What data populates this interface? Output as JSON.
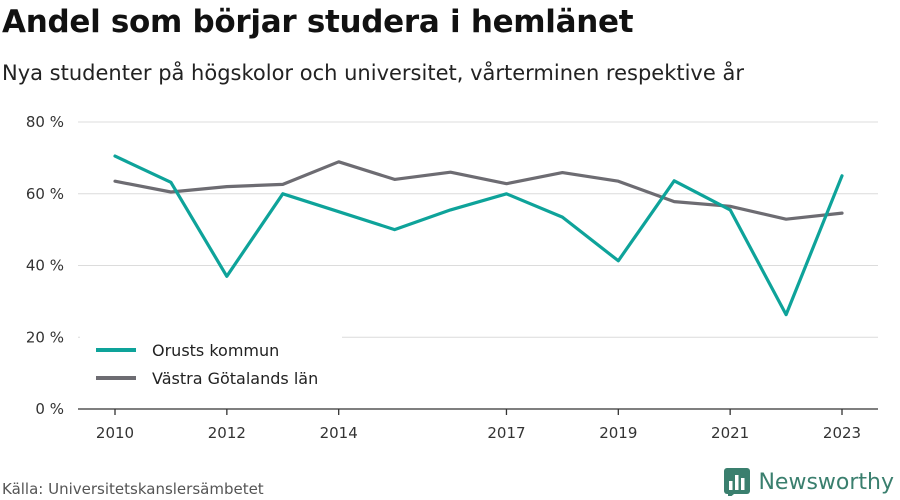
{
  "title": "Andel som börjar studera i hemlänet",
  "subtitle": "Nya studenter på högskolor och universitet, vårterminen respektive år",
  "source": "Källa: Universitetskanslersämbetet",
  "brand": {
    "name": "Newsworthy",
    "icon": "bar-chart-logo-icon",
    "color": "#3a7f6e"
  },
  "chart_data": {
    "type": "line",
    "x": [
      2010,
      2011,
      2012,
      2013,
      2014,
      2015,
      2016,
      2017,
      2018,
      2019,
      2020,
      2021,
      2022,
      2023
    ],
    "x_tick_values": [
      2010,
      2012,
      2014,
      2017,
      2019,
      2021,
      2023
    ],
    "x_tick_labels": [
      "2010",
      "2012",
      "2014",
      "2017",
      "2019",
      "2021",
      "2023"
    ],
    "y_ticks": [
      0,
      20,
      40,
      60,
      80
    ],
    "y_tick_labels": [
      "0 %",
      "20 %",
      "40 %",
      "60 %",
      "80 %"
    ],
    "xlim": [
      2010,
      2023
    ],
    "ylim": [
      0,
      80
    ],
    "grid": true,
    "legend_position": "bottom-left",
    "series": [
      {
        "name": "Orusts kommun",
        "color": "#0ea39a",
        "values": [
          70.5,
          63.2,
          37.0,
          60.0,
          55.0,
          50.0,
          55.5,
          60.0,
          53.5,
          41.3,
          63.6,
          55.5,
          26.3,
          65.0
        ]
      },
      {
        "name": "Västra Götalands län",
        "color": "#6d6c72",
        "values": [
          63.5,
          60.5,
          62.0,
          62.6,
          68.9,
          64.0,
          66.0,
          62.8,
          65.9,
          63.5,
          57.8,
          56.5,
          52.9,
          54.6
        ]
      }
    ]
  }
}
